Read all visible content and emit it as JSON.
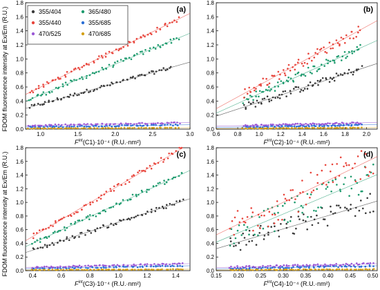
{
  "figure": {
    "ylabel_top": "FDOM fluorescence intensity at Ex/Em (R.U.)",
    "ylabel_bottom": "FDOM fluorescence intensity at Ex/Em (R.U.)"
  },
  "legend": {
    "placement": "top-left of panel (a)",
    "entries": [
      {
        "label": "355/404",
        "color": "#3a3a3a"
      },
      {
        "label": "365/480",
        "color": "#1e9b6e"
      },
      {
        "label": "355/440",
        "color": "#e8453c"
      },
      {
        "label": "355/685",
        "color": "#2b6fd6"
      },
      {
        "label": "470/525",
        "color": "#9b59d6"
      },
      {
        "label": "470/685",
        "color": "#d4a017"
      }
    ]
  },
  "chart_data": [
    {
      "type": "scatter",
      "panel": "(a)",
      "xlabel_base": "F",
      "xlabel_sup": "int",
      "xlabel_rest": "(C1)·10⁻⁴ (R.U.·nm²)",
      "xlim": [
        0.8,
        3.0
      ],
      "ylim": [
        0.0,
        1.8
      ],
      "xticks": [
        "1.0",
        "1.5",
        "2.0",
        "2.5",
        "3.0"
      ],
      "xtick_values": [
        1.0,
        1.5,
        2.0,
        2.5,
        3.0
      ],
      "yticks": [
        "0.0",
        "0.2",
        "0.4",
        "0.6",
        "0.8",
        "1.0",
        "1.2",
        "1.4",
        "1.6",
        "1.8"
      ],
      "ytick_values": [
        0.0,
        0.2,
        0.4,
        0.6,
        0.8,
        1.0,
        1.2,
        1.4,
        1.6,
        1.8
      ],
      "grid": false,
      "series": [
        {
          "name": "355/404",
          "color": "#3a3a3a",
          "x_range": [
            0.85,
            2.75
          ],
          "fit": [
            0.31,
            0.88
          ],
          "spread": 0.025
        },
        {
          "name": "365/480",
          "color": "#1e9b6e",
          "x_range": [
            0.85,
            2.85
          ],
          "fit": [
            0.42,
            1.3
          ],
          "spread": 0.03
        },
        {
          "name": "355/440",
          "color": "#e8453c",
          "x_range": [
            0.85,
            2.85
          ],
          "fit": [
            0.52,
            1.57
          ],
          "spread": 0.03
        },
        {
          "name": "355/685",
          "color": "#2b6fd6",
          "x_range": [
            0.85,
            2.85
          ],
          "fit": [
            0.03,
            0.06
          ],
          "spread": 0.008
        },
        {
          "name": "470/525",
          "color": "#9b59d6",
          "x_range": [
            0.85,
            2.85
          ],
          "fit": [
            0.05,
            0.09
          ],
          "spread": 0.01
        },
        {
          "name": "470/685",
          "color": "#d4a017",
          "x_range": [
            0.85,
            2.85
          ],
          "fit": [
            0.01,
            0.02
          ],
          "spread": 0.004
        }
      ]
    },
    {
      "type": "scatter",
      "panel": "(b)",
      "xlabel_base": "F",
      "xlabel_sup": "int",
      "xlabel_rest": "(C2)·10⁻⁴ (R.U.·nm²)",
      "xlim": [
        0.6,
        2.1
      ],
      "ylim": [
        0.0,
        1.8
      ],
      "xticks": [
        "0.6",
        "0.8",
        "1.0",
        "1.2",
        "1.4",
        "1.6",
        "1.8",
        "2.0"
      ],
      "xtick_values": [
        0.6,
        0.8,
        1.0,
        1.2,
        1.4,
        1.6,
        1.8,
        2.0
      ],
      "yticks": [
        "0.0",
        "0.2",
        "0.4",
        "0.6",
        "0.8",
        "1.0",
        "1.2",
        "1.4",
        "1.6",
        "1.8"
      ],
      "ytick_values": [
        0.0,
        0.2,
        0.4,
        0.6,
        0.8,
        1.0,
        1.2,
        1.4,
        1.6,
        1.8
      ],
      "grid": false,
      "series": [
        {
          "name": "355/404",
          "color": "#3a3a3a",
          "x_range": [
            0.85,
            1.95
          ],
          "fit": [
            0.31,
            0.86
          ],
          "spread": 0.05
        },
        {
          "name": "365/480",
          "color": "#1e9b6e",
          "x_range": [
            0.85,
            1.95
          ],
          "fit": [
            0.4,
            1.16
          ],
          "spread": 0.06
        },
        {
          "name": "355/440",
          "color": "#e8453c",
          "x_range": [
            0.85,
            1.95
          ],
          "fit": [
            0.5,
            1.42
          ],
          "spread": 0.07
        },
        {
          "name": "355/685",
          "color": "#2b6fd6",
          "x_range": [
            0.85,
            1.95
          ],
          "fit": [
            0.03,
            0.06
          ],
          "spread": 0.01
        },
        {
          "name": "470/525",
          "color": "#9b59d6",
          "x_range": [
            0.85,
            1.95
          ],
          "fit": [
            0.05,
            0.09
          ],
          "spread": 0.012
        },
        {
          "name": "470/685",
          "color": "#d4a017",
          "x_range": [
            0.85,
            1.95
          ],
          "fit": [
            0.01,
            0.02
          ],
          "spread": 0.004
        }
      ]
    },
    {
      "type": "scatter",
      "panel": "(c)",
      "xlabel_base": "F",
      "xlabel_sup": "int",
      "xlabel_rest": "(C3)·10⁻⁴ (R.U.·nm²)",
      "xlim": [
        0.35,
        1.5
      ],
      "ylim": [
        0.0,
        1.8
      ],
      "xticks": [
        "0.4",
        "0.6",
        "0.8",
        "1.0",
        "1.2",
        "1.4"
      ],
      "xtick_values": [
        0.4,
        0.6,
        0.8,
        1.0,
        1.2,
        1.4
      ],
      "yticks": [
        "0.0",
        "0.2",
        "0.4",
        "0.6",
        "0.8",
        "1.0",
        "1.2",
        "1.4",
        "1.6",
        "1.8"
      ],
      "ytick_values": [
        0.0,
        0.2,
        0.4,
        0.6,
        0.8,
        1.0,
        1.2,
        1.4,
        1.6,
        1.8
      ],
      "grid": false,
      "series": [
        {
          "name": "355/404",
          "color": "#3a3a3a",
          "x_range": [
            0.4,
            1.45
          ],
          "fit": [
            0.3,
            1.02
          ],
          "spread": 0.03
        },
        {
          "name": "365/480",
          "color": "#1e9b6e",
          "x_range": [
            0.4,
            1.45
          ],
          "fit": [
            0.4,
            1.42
          ],
          "spread": 0.035
        },
        {
          "name": "355/440",
          "color": "#e8453c",
          "x_range": [
            0.4,
            1.45
          ],
          "fit": [
            0.5,
            1.8
          ],
          "spread": 0.04
        },
        {
          "name": "355/685",
          "color": "#2b6fd6",
          "x_range": [
            0.4,
            1.45
          ],
          "fit": [
            0.03,
            0.07
          ],
          "spread": 0.008
        },
        {
          "name": "470/525",
          "color": "#9b59d6",
          "x_range": [
            0.4,
            1.45
          ],
          "fit": [
            0.05,
            0.1
          ],
          "spread": 0.01
        },
        {
          "name": "470/685",
          "color": "#d4a017",
          "x_range": [
            0.4,
            1.45
          ],
          "fit": [
            0.01,
            0.02
          ],
          "spread": 0.004
        }
      ]
    },
    {
      "type": "scatter",
      "panel": "(d)",
      "xlabel_base": "F",
      "xlabel_sup": "int",
      "xlabel_rest": "(C4)·10⁻⁴ (R.U.·nm²)",
      "xlim": [
        0.15,
        0.51
      ],
      "ylim": [
        0.0,
        1.8
      ],
      "xticks": [
        "0.15",
        "0.20",
        "0.25",
        "0.30",
        "0.35",
        "0.40",
        "0.45",
        "0.50"
      ],
      "xtick_values": [
        0.15,
        0.2,
        0.25,
        0.3,
        0.35,
        0.4,
        0.45,
        0.5
      ],
      "yticks": [
        "0.0",
        "0.2",
        "0.4",
        "0.6",
        "0.8",
        "1.0",
        "1.2",
        "1.4",
        "1.6",
        "1.8"
      ],
      "ytick_values": [
        0.0,
        0.2,
        0.4,
        0.6,
        0.8,
        1.0,
        1.2,
        1.4,
        1.6,
        1.8
      ],
      "grid": false,
      "series": [
        {
          "name": "355/404",
          "color": "#3a3a3a",
          "x_range": [
            0.18,
            0.5
          ],
          "fit": [
            0.38,
            1.0
          ],
          "spread": 0.15
        },
        {
          "name": "365/480",
          "color": "#1e9b6e",
          "x_range": [
            0.18,
            0.5
          ],
          "fit": [
            0.5,
            1.38
          ],
          "spread": 0.2
        },
        {
          "name": "355/440",
          "color": "#e8453c",
          "x_range": [
            0.18,
            0.5
          ],
          "fit": [
            0.62,
            1.64
          ],
          "spread": 0.25
        },
        {
          "name": "355/685",
          "color": "#2b6fd6",
          "x_range": [
            0.18,
            0.5
          ],
          "fit": [
            0.03,
            0.07
          ],
          "spread": 0.012
        },
        {
          "name": "470/525",
          "color": "#9b59d6",
          "x_range": [
            0.18,
            0.5
          ],
          "fit": [
            0.05,
            0.1
          ],
          "spread": 0.015
        },
        {
          "name": "470/685",
          "color": "#d4a017",
          "x_range": [
            0.18,
            0.5
          ],
          "fit": [
            0.01,
            0.02
          ],
          "spread": 0.005
        }
      ]
    }
  ]
}
